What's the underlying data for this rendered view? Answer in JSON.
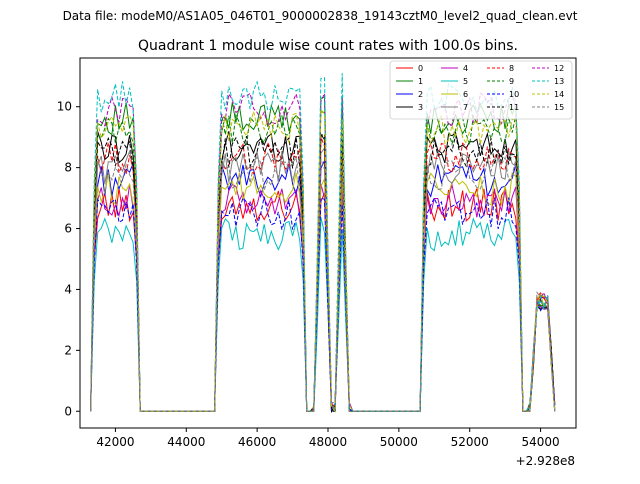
{
  "header": {
    "datafile_text": "Data file: modeM0/AS1A05_046T01_9000002838_19143cztM0_level2_quad_clean.evt"
  },
  "chart_data": {
    "type": "line",
    "title": "Quadrant 1 module wise count rates with 100.0s bins.",
    "xlabel": "",
    "ylabel": "",
    "x_offset_label": "+2.928e8",
    "xlim": [
      41000,
      55000
    ],
    "ylim": [
      -0.55,
      11.6
    ],
    "x_ticks": [
      42000,
      44000,
      46000,
      48000,
      50000,
      52000,
      54000
    ],
    "x_tick_labels": [
      "42000",
      "44000",
      "46000",
      "48000",
      "50000",
      "52000",
      "54000"
    ],
    "y_ticks": [
      0,
      2,
      4,
      6,
      8,
      10
    ],
    "y_tick_labels": [
      "0",
      "2",
      "4",
      "6",
      "8",
      "10"
    ],
    "legend_position": "top-right",
    "segments": [
      {
        "start": 41300,
        "end": 42700,
        "step": 100
      },
      {
        "start": 44800,
        "end": 47400,
        "step": 100
      },
      {
        "start": 47600,
        "end": 48100,
        "step": 100
      },
      {
        "start": 48200,
        "end": 48600,
        "step": 100
      },
      {
        "start": 50600,
        "end": 53500,
        "step": 100
      },
      {
        "start": 53700,
        "end": 54400,
        "step": 100
      }
    ],
    "series": [
      {
        "name": "0",
        "color": "#ff0000",
        "dash": "solid",
        "level": 6.8
      },
      {
        "name": "1",
        "color": "#008000",
        "dash": "solid",
        "level": 9.6
      },
      {
        "name": "2",
        "color": "#0000ff",
        "dash": "solid",
        "level": 7.6
      },
      {
        "name": "3",
        "color": "#000000",
        "dash": "solid",
        "level": 8.7
      },
      {
        "name": "4",
        "color": "#bf00bf",
        "dash": "solid",
        "level": 6.9
      },
      {
        "name": "5",
        "color": "#00bfbf",
        "dash": "solid",
        "level": 5.8
      },
      {
        "name": "6",
        "color": "#bfbf00",
        "dash": "solid",
        "level": 7.3
      },
      {
        "name": "7",
        "color": "#808080",
        "dash": "solid",
        "level": 8.0
      },
      {
        "name": "8",
        "color": "#ff0000",
        "dash": "dashed",
        "level": 8.3
      },
      {
        "name": "9",
        "color": "#008000",
        "dash": "dashed",
        "level": 9.2
      },
      {
        "name": "10",
        "color": "#0000ff",
        "dash": "dashed",
        "level": 6.5
      },
      {
        "name": "11",
        "color": "#000000",
        "dash": "dashed",
        "level": 8.5
      },
      {
        "name": "12",
        "color": "#bf00bf",
        "dash": "dashed",
        "level": 9.9
      },
      {
        "name": "13",
        "color": "#00bfbf",
        "dash": "dashed",
        "level": 10.3
      },
      {
        "name": "14",
        "color": "#bfbf00",
        "dash": "dashed",
        "level": 9.3
      },
      {
        "name": "15",
        "color": "#808080",
        "dash": "dashed",
        "level": 7.8
      }
    ]
  }
}
